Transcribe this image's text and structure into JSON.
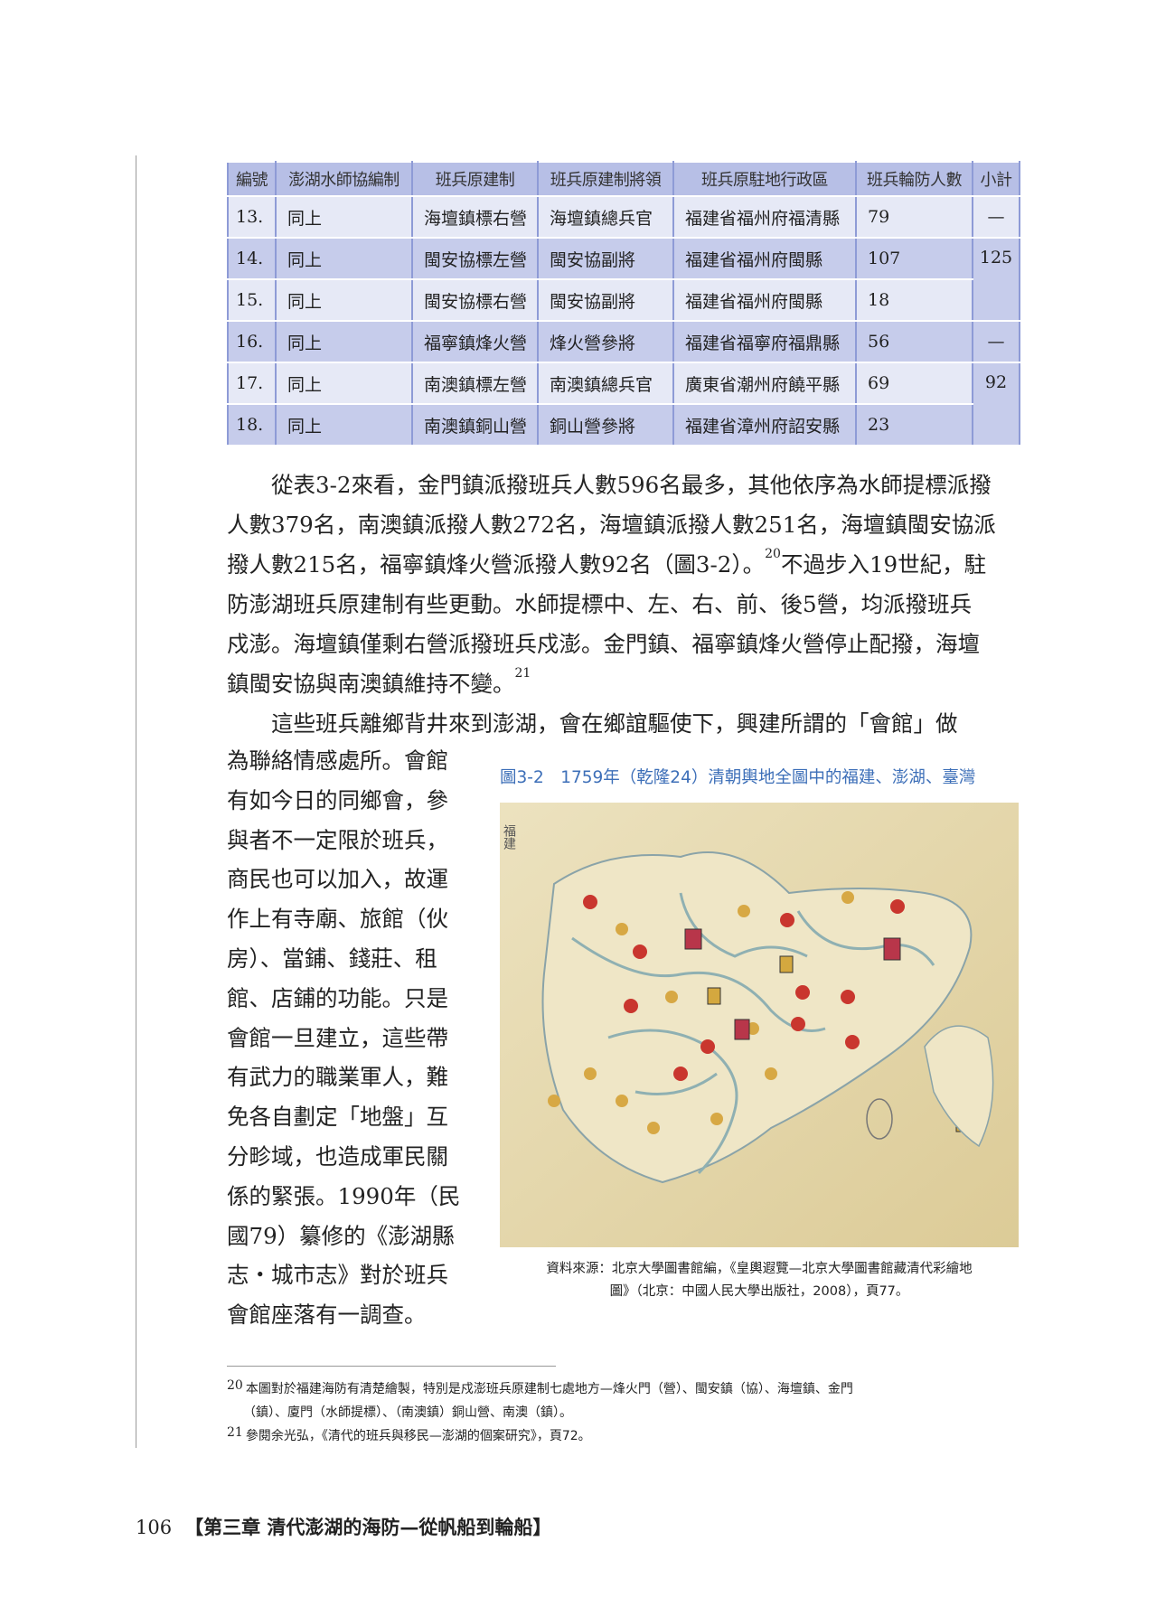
{
  "table": {
    "headers": [
      "編號",
      "澎湖水師協編制",
      "班兵原建制",
      "班兵原建制將領",
      "班兵原駐地行政區",
      "班兵輪防人數",
      "小計"
    ],
    "rows": [
      {
        "no": "13.",
        "unit": "同上",
        "orig": "海壇鎮標右營",
        "commander": "海壇鎮總兵官",
        "region": "福建省福州府福清縣",
        "count": "79"
      },
      {
        "no": "14.",
        "unit": "同上",
        "orig": "閩安協標左營",
        "commander": "閩安協副將",
        "region": "福建省福州府閩縣",
        "count": "107"
      },
      {
        "no": "15.",
        "unit": "同上",
        "orig": "閩安協標右營",
        "commander": "閩安協副將",
        "region": "福建省福州府閩縣",
        "count": "18"
      },
      {
        "no": "16.",
        "unit": "同上",
        "orig": "福寧鎮烽火營",
        "commander": "烽火營參將",
        "region": "福建省福寧府福鼎縣",
        "count": "56"
      },
      {
        "no": "17.",
        "unit": "同上",
        "orig": "南澳鎮標左營",
        "commander": "南澳鎮總兵官",
        "region": "廣東省潮州府饒平縣",
        "count": "69"
      },
      {
        "no": "18.",
        "unit": "同上",
        "orig": "南澳鎮銅山營",
        "commander": "銅山營參將",
        "region": "福建省漳州府詔安縣",
        "count": "23"
      }
    ],
    "subtotals": [
      "—",
      "125",
      "—",
      "92"
    ]
  },
  "body": {
    "lines": [
      {
        "text": "　　從表3-2來看，金門鎮派撥班兵人數596名最多，其他依序為水師提標派撥"
      },
      {
        "text": "人數379名，南澳鎮派撥人數272名，海壇鎮派撥人數251名，海壇鎮閩安協派"
      },
      {
        "text": "撥人數215名，福寧鎮烽火營派撥人數92名（圖3-2）。",
        "sup": "20",
        "post": "不過步入19世紀，駐"
      },
      {
        "text": "防澎湖班兵原建制有些更動。水師提標中、左、右、前、後5營，均派撥班兵"
      },
      {
        "text": "戍澎。海壇鎮僅剩右營派撥班兵戍澎。金門鎮、福寧鎮烽火營停止配撥，海壇"
      },
      {
        "text": "鎮閩安協與南澳鎮維持不變。",
        "sup": "21"
      },
      {
        "text": "　　這些班兵離鄉背井來到澎湖，會在鄉誼驅使下，興建所謂的「會館」做"
      }
    ],
    "column_lines": [
      "為聯絡情感處所。會館",
      "有如今日的同鄉會，參",
      "與者不一定限於班兵，",
      "商民也可以加入，故運",
      "作上有寺廟、旅館（伙",
      "房）、當鋪、錢莊、租",
      "館、店鋪的功能。只是",
      "會館一旦建立，這些帶",
      "有武力的職業軍人，難",
      "免各自劃定「地盤」互",
      "分畛域，也造成軍民關",
      "係的緊張。1990年（民",
      "國79）纂修的《澎湖縣",
      "志・城市志》對於班兵",
      "會館座落有一調查。"
    ]
  },
  "figure": {
    "caption": "圖3-2　1759年（乾隆24）清朝輿地全圖中的福建、澎湖、臺灣",
    "caption_color": "#3d6fb8",
    "map_label": "福建",
    "source_line1": "資料來源：北京大學圖書館編，《皇輿遐覽—北京大學圖書館藏清代彩繪地",
    "source_line2": "圖》（北京：中國人民大學出版社，2008），頁77。"
  },
  "footnotes": [
    {
      "n": "20",
      "line1": "本圖對於福建海防有清楚繪製，特別是戍澎班兵原建制七處地方—烽火門（營）、閩安鎮（協）、海壇鎮、金門",
      "line2": "（鎮）、廈門（水師提標）、（南澳鎮）銅山營、南澳（鎮）。"
    },
    {
      "n": "21",
      "line1": "參閱余光弘，《清代的班兵與移民—澎湖的個案研究》，頁72。"
    }
  ],
  "footer": {
    "page": "106",
    "chapter": "【第三章  清代澎湖的海防—從帆船到輪船】"
  }
}
